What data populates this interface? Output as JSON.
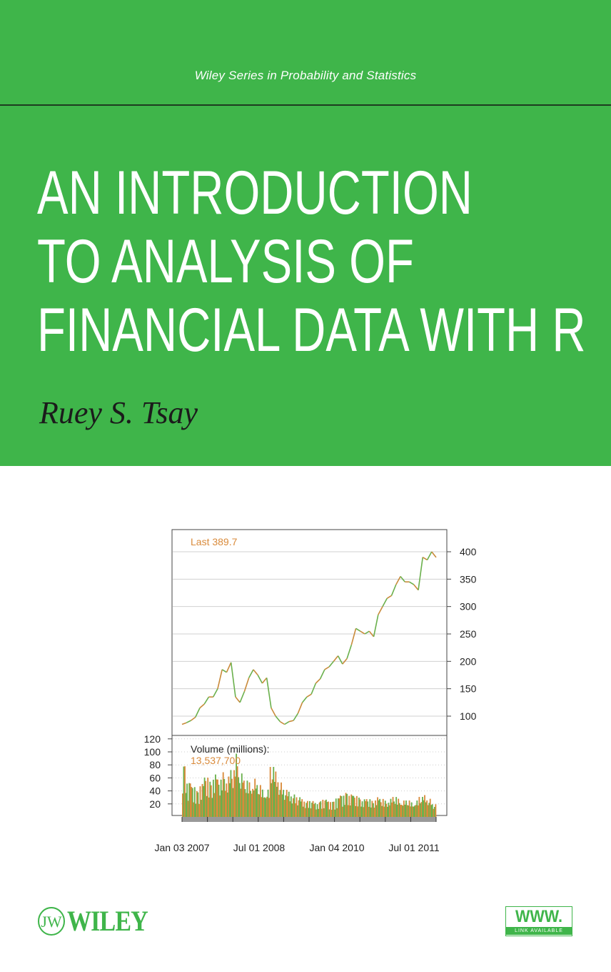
{
  "cover": {
    "series": "Wiley Series in Probability and Statistics",
    "title_lines": [
      "AN INTRODUCTION",
      "TO ANALYSIS OF",
      "FINANCIAL DATA WITH R"
    ],
    "author": "Ruey S. Tsay",
    "publisher_logo": "WILEY",
    "www_badge": {
      "main": "WWW.",
      "sub": "LINK AVAILABLE"
    },
    "colors": {
      "green": "#3fb54a",
      "orange": "#d98a3a",
      "rule": "#1d3b20"
    }
  },
  "chart_data": {
    "type": "line",
    "price_label": "Last 389.7",
    "volume_label": "Volume (millions):",
    "volume_value": "13,537,700",
    "x_tick_labels": [
      "Jan 03 2007",
      "Jul 01 2008",
      "Jan 04 2010",
      "Jul 01 2011"
    ],
    "y_price_ticks": [
      100,
      150,
      200,
      250,
      300,
      350,
      400
    ],
    "y_volume_ticks": [
      20,
      40,
      60,
      80,
      100,
      120
    ],
    "grid": true,
    "price_monthly": [
      85,
      88,
      92,
      98,
      115,
      122,
      135,
      135,
      150,
      185,
      180,
      198,
      135,
      125,
      145,
      170,
      185,
      175,
      160,
      170,
      115,
      100,
      90,
      85,
      90,
      92,
      105,
      125,
      135,
      140,
      160,
      168,
      185,
      190,
      200,
      210,
      195,
      205,
      230,
      260,
      255,
      250,
      255,
      245,
      285,
      300,
      315,
      320,
      340,
      355,
      345,
      345,
      340,
      330,
      390,
      385,
      400,
      389.7
    ],
    "volume_monthly": [
      60,
      40,
      35,
      30,
      38,
      45,
      40,
      48,
      42,
      50,
      45,
      52,
      70,
      48,
      40,
      38,
      42,
      35,
      30,
      30,
      55,
      50,
      38,
      30,
      28,
      25,
      22,
      20,
      18,
      18,
      16,
      18,
      20,
      18,
      18,
      22,
      25,
      28,
      26,
      24,
      22,
      20,
      20,
      18,
      22,
      20,
      18,
      20,
      22,
      20,
      18,
      18,
      16,
      18,
      22,
      24,
      20,
      14
    ]
  }
}
